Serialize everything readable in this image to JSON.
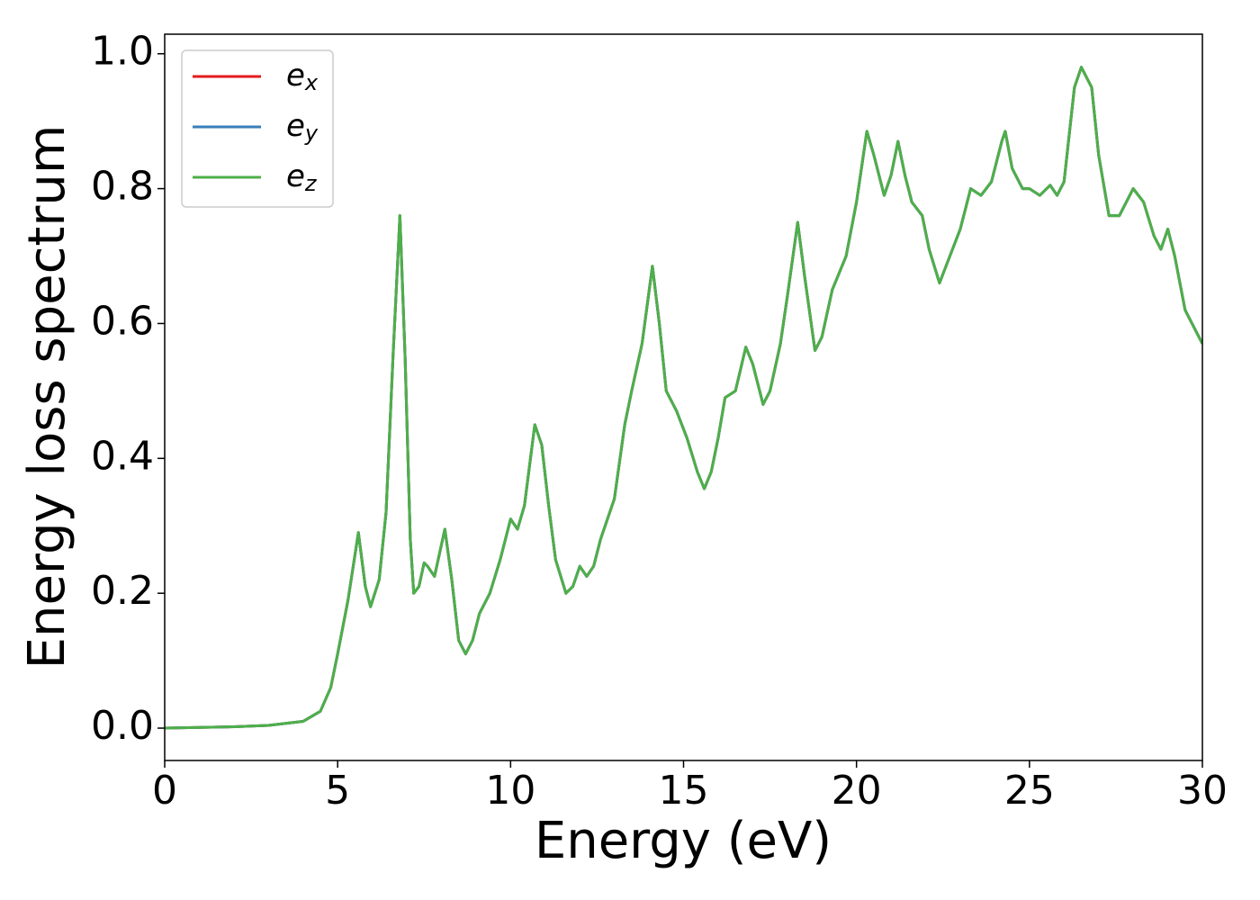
{
  "chart_data": {
    "type": "line",
    "xlabel": "Energy (eV)",
    "ylabel": "Energy loss spectrum",
    "xlim": [
      0,
      30
    ],
    "ylim": [
      -0.048,
      1.029
    ],
    "xticks": [
      0,
      5,
      10,
      15,
      20,
      25,
      30
    ],
    "yticks": [
      {
        "value": 0,
        "label": "0.0"
      },
      {
        "value": 0.2,
        "label": "0.2"
      },
      {
        "value": 0.4,
        "label": "0.4"
      },
      {
        "value": 0.6,
        "label": "0.6"
      },
      {
        "value": 0.8,
        "label": "0.8"
      },
      {
        "value": 1,
        "label": "1.0"
      }
    ],
    "legend": "upper left",
    "grid": false,
    "x": [
      0,
      2,
      3,
      4,
      4.5,
      4.8,
      5.0,
      5.3,
      5.6,
      5.8,
      5.95,
      6.2,
      6.4,
      6.6,
      6.8,
      6.95,
      7.1,
      7.2,
      7.35,
      7.5,
      7.6,
      7.8,
      8.1,
      8.3,
      8.5,
      8.7,
      8.9,
      9.1,
      9.4,
      9.7,
      10.0,
      10.2,
      10.4,
      10.7,
      10.9,
      11.1,
      11.3,
      11.6,
      11.8,
      12.0,
      12.2,
      12.4,
      12.6,
      13.0,
      13.3,
      13.5,
      13.8,
      14.1,
      14.3,
      14.5,
      14.8,
      15.1,
      15.4,
      15.6,
      15.8,
      16.0,
      16.2,
      16.5,
      16.8,
      17.0,
      17.3,
      17.5,
      17.8,
      18.0,
      18.3,
      18.5,
      18.8,
      19.0,
      19.3,
      19.7,
      20.0,
      20.3,
      20.5,
      20.8,
      21.0,
      21.2,
      21.4,
      21.6,
      21.9,
      22.1,
      22.4,
      22.7,
      23.0,
      23.3,
      23.6,
      23.9,
      24.2,
      24.3,
      24.5,
      24.8,
      25.0,
      25.3,
      25.6,
      25.8,
      26.0,
      26.3,
      26.5,
      26.8,
      27.0,
      27.3,
      27.6,
      28.0,
      28.3,
      28.6,
      28.8,
      29.0,
      29.2,
      29.5,
      29.8,
      30.0
    ],
    "series": [
      {
        "name": "ex",
        "color": "#e41a1c",
        "values": [
          0,
          0.002,
          0.004,
          0.01,
          0.025,
          0.06,
          0.11,
          0.19,
          0.29,
          0.21,
          0.18,
          0.22,
          0.32,
          0.55,
          0.76,
          0.55,
          0.28,
          0.2,
          0.21,
          0.245,
          0.24,
          0.225,
          0.295,
          0.22,
          0.13,
          0.11,
          0.13,
          0.17,
          0.2,
          0.25,
          0.31,
          0.295,
          0.33,
          0.45,
          0.42,
          0.33,
          0.25,
          0.2,
          0.21,
          0.24,
          0.225,
          0.24,
          0.28,
          0.34,
          0.45,
          0.5,
          0.57,
          0.685,
          0.6,
          0.5,
          0.47,
          0.43,
          0.38,
          0.355,
          0.38,
          0.43,
          0.49,
          0.5,
          0.565,
          0.54,
          0.48,
          0.5,
          0.57,
          0.64,
          0.75,
          0.67,
          0.56,
          0.58,
          0.65,
          0.7,
          0.78,
          0.885,
          0.85,
          0.79,
          0.82,
          0.87,
          0.82,
          0.78,
          0.76,
          0.71,
          0.66,
          0.7,
          0.74,
          0.8,
          0.79,
          0.81,
          0.87,
          0.885,
          0.83,
          0.8,
          0.8,
          0.79,
          0.805,
          0.79,
          0.81,
          0.95,
          0.98,
          0.95,
          0.85,
          0.76,
          0.76,
          0.8,
          0.78,
          0.73,
          0.71,
          0.74,
          0.7,
          0.62,
          0.59,
          0.57
        ]
      },
      {
        "name": "ey",
        "color": "#377eb8",
        "values": [
          0,
          0.002,
          0.004,
          0.01,
          0.025,
          0.06,
          0.11,
          0.19,
          0.29,
          0.21,
          0.18,
          0.22,
          0.32,
          0.55,
          0.76,
          0.55,
          0.28,
          0.2,
          0.21,
          0.245,
          0.24,
          0.225,
          0.295,
          0.22,
          0.13,
          0.11,
          0.13,
          0.17,
          0.2,
          0.25,
          0.31,
          0.295,
          0.33,
          0.45,
          0.42,
          0.33,
          0.25,
          0.2,
          0.21,
          0.24,
          0.225,
          0.24,
          0.28,
          0.34,
          0.45,
          0.5,
          0.57,
          0.685,
          0.6,
          0.5,
          0.47,
          0.43,
          0.38,
          0.355,
          0.38,
          0.43,
          0.49,
          0.5,
          0.565,
          0.54,
          0.48,
          0.5,
          0.57,
          0.64,
          0.75,
          0.67,
          0.56,
          0.58,
          0.65,
          0.7,
          0.78,
          0.885,
          0.85,
          0.79,
          0.82,
          0.87,
          0.82,
          0.78,
          0.76,
          0.71,
          0.66,
          0.7,
          0.74,
          0.8,
          0.79,
          0.81,
          0.87,
          0.885,
          0.83,
          0.8,
          0.8,
          0.79,
          0.805,
          0.79,
          0.81,
          0.95,
          0.98,
          0.95,
          0.85,
          0.76,
          0.76,
          0.8,
          0.78,
          0.73,
          0.71,
          0.74,
          0.7,
          0.62,
          0.59,
          0.57
        ]
      },
      {
        "name": "ez",
        "color": "#4daf4a",
        "values": [
          0,
          0.002,
          0.004,
          0.01,
          0.025,
          0.06,
          0.11,
          0.19,
          0.29,
          0.21,
          0.18,
          0.22,
          0.32,
          0.55,
          0.76,
          0.55,
          0.28,
          0.2,
          0.21,
          0.245,
          0.24,
          0.225,
          0.295,
          0.22,
          0.13,
          0.11,
          0.13,
          0.17,
          0.2,
          0.25,
          0.31,
          0.295,
          0.33,
          0.45,
          0.42,
          0.33,
          0.25,
          0.2,
          0.21,
          0.24,
          0.225,
          0.24,
          0.28,
          0.34,
          0.45,
          0.5,
          0.57,
          0.685,
          0.6,
          0.5,
          0.47,
          0.43,
          0.38,
          0.355,
          0.38,
          0.43,
          0.49,
          0.5,
          0.565,
          0.54,
          0.48,
          0.5,
          0.57,
          0.64,
          0.75,
          0.67,
          0.56,
          0.58,
          0.65,
          0.7,
          0.78,
          0.885,
          0.85,
          0.79,
          0.82,
          0.87,
          0.82,
          0.78,
          0.76,
          0.71,
          0.66,
          0.7,
          0.74,
          0.8,
          0.79,
          0.81,
          0.87,
          0.885,
          0.83,
          0.8,
          0.8,
          0.79,
          0.805,
          0.79,
          0.81,
          0.95,
          0.98,
          0.95,
          0.85,
          0.76,
          0.76,
          0.8,
          0.78,
          0.73,
          0.71,
          0.74,
          0.7,
          0.62,
          0.59,
          0.57
        ]
      }
    ]
  }
}
